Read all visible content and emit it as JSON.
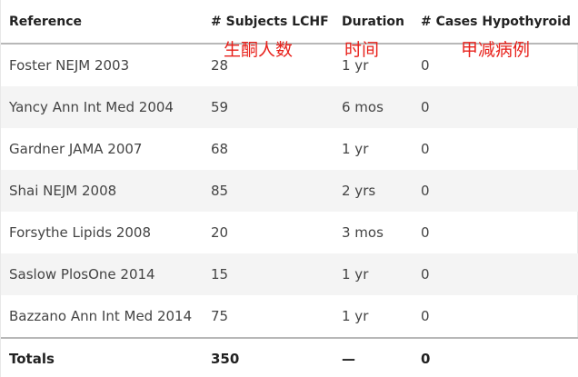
{
  "table": {
    "headers": [
      "Reference",
      "# Subjects LCHF",
      "Duration",
      "# Cases Hypothyroid"
    ],
    "rows": [
      [
        "Foster NEJM 2003",
        "28",
        "1 yr",
        "0"
      ],
      [
        "Yancy Ann Int Med 2004",
        "59",
        "6 mos",
        "0"
      ],
      [
        "Gardner JAMA 2007",
        "68",
        "1 yr",
        "0"
      ],
      [
        "Shai NEJM 2008",
        "85",
        "2 yrs",
        "0"
      ],
      [
        "Forsythe Lipids 2008",
        "20",
        "3 mos",
        "0"
      ],
      [
        "Saslow PlosOne 2014",
        "15",
        "1 yr",
        "0"
      ],
      [
        "Bazzano Ann Int Med 2014",
        "75",
        "1 yr",
        "0"
      ]
    ],
    "totals": [
      "Totals",
      "350",
      "—",
      "0"
    ]
  },
  "annotations": {
    "subjects_cn": "生酮人数",
    "duration_cn": "时间",
    "cases_cn": "甲减病例"
  }
}
